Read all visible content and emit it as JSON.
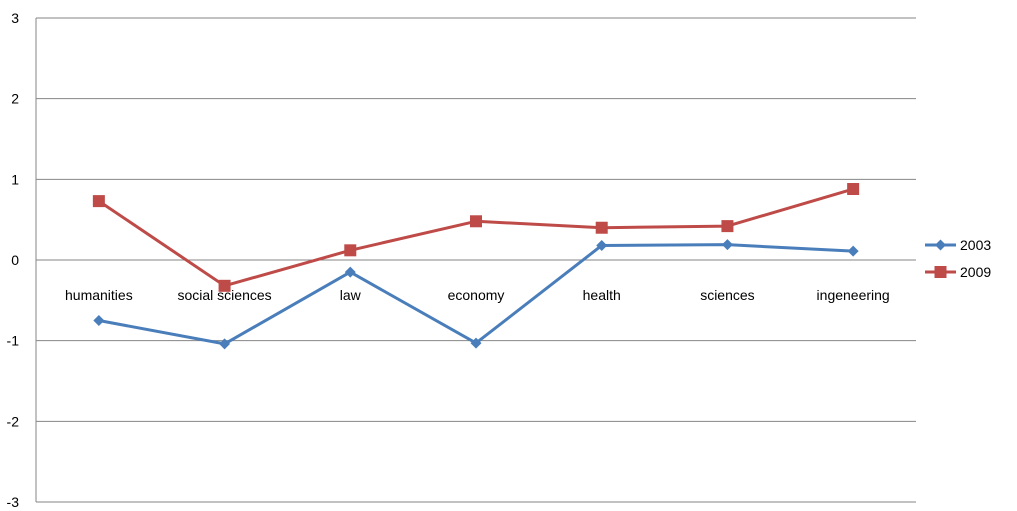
{
  "chart_data": {
    "type": "line",
    "categories": [
      "humanities",
      "social sciences",
      "law",
      "economy",
      "health",
      "sciences",
      "ingeneering"
    ],
    "series": [
      {
        "name": "2003",
        "color": "#4a7ebb",
        "marker": "diamond",
        "values": [
          -0.75,
          -1.04,
          -0.15,
          -1.03,
          0.18,
          0.19,
          0.11
        ]
      },
      {
        "name": "2009",
        "color": "#be4b48",
        "marker": "square",
        "values": [
          0.73,
          -0.32,
          0.12,
          0.48,
          0.4,
          0.42,
          0.88
        ]
      }
    ],
    "y_ticks": [
      "3",
      "2",
      "1",
      "0",
      "-1",
      "-2",
      "-3"
    ],
    "ylim": [
      -3,
      3
    ],
    "grid": true,
    "legend_position": "right",
    "title": "",
    "xlabel": "",
    "ylabel": ""
  }
}
